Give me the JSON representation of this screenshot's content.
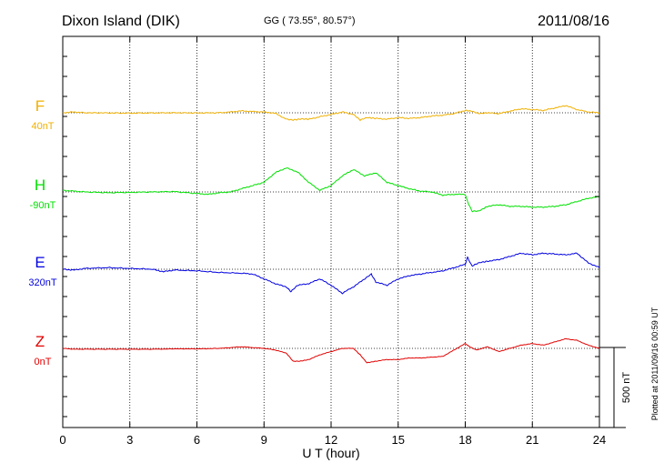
{
  "chart_data": {
    "type": "line",
    "title": "Dixon Island (DIK)",
    "coords": "GG ( 73.55°,  80.57°)",
    "date": "2011/08/16",
    "xlabel": "U T (hour)",
    "xlim": [
      0,
      24
    ],
    "xticks": [
      "0",
      "3",
      "6",
      "9",
      "12",
      "15",
      "18",
      "21",
      "24"
    ],
    "scale_label": "500 nT",
    "plotted_note": "Plotted at 2011/09/16 00:59 UT",
    "grid": true,
    "series": [
      {
        "name": "F",
        "offset_label": "40nT",
        "color": "#f0b000",
        "x": [
          0,
          0.5,
          1,
          2,
          3,
          4,
          5,
          6,
          7,
          7.5,
          8,
          8.5,
          9,
          9.5,
          10,
          10.3,
          10.7,
          11,
          11.5,
          12,
          12.5,
          13,
          13.3,
          13.6,
          14,
          14.5,
          15,
          15.5,
          16,
          16.5,
          17,
          17.5,
          18,
          18.3,
          18.6,
          19,
          19.5,
          20,
          20.5,
          21,
          21.5,
          22,
          22.5,
          23,
          23.5,
          24
        ],
        "values": [
          0,
          5,
          0,
          -1,
          -2,
          -1,
          0,
          -1,
          0,
          5,
          12,
          8,
          5,
          -3,
          -40,
          -45,
          -38,
          -40,
          -25,
          -10,
          5,
          -10,
          -45,
          -30,
          -35,
          -40,
          -30,
          -35,
          -30,
          -20,
          -15,
          -5,
          15,
          10,
          -5,
          0,
          -5,
          10,
          25,
          20,
          15,
          30,
          45,
          20,
          5,
          0
        ]
      },
      {
        "name": "H",
        "offset_label": "-90nT",
        "color": "#00e000",
        "x": [
          0,
          0.5,
          1,
          2,
          3,
          4,
          5,
          6,
          6.5,
          7,
          7.5,
          8,
          8.5,
          9,
          9.5,
          10,
          10.5,
          11,
          11.5,
          12,
          12.5,
          13,
          13.5,
          14,
          14.5,
          15,
          15.5,
          16,
          16.5,
          17,
          17.5,
          18,
          18.1,
          18.3,
          18.6,
          19,
          19.5,
          20,
          20.5,
          21,
          21.5,
          22,
          22.5,
          23,
          23.5,
          24
        ],
        "values": [
          10,
          5,
          0,
          -5,
          -3,
          0,
          2,
          -10,
          -15,
          -5,
          0,
          20,
          40,
          60,
          120,
          150,
          125,
          60,
          10,
          40,
          100,
          140,
          100,
          120,
          60,
          40,
          20,
          5,
          0,
          -20,
          -15,
          -15,
          -60,
          -120,
          -120,
          -90,
          -80,
          -90,
          -90,
          -95,
          -95,
          -90,
          -80,
          -60,
          -40,
          -30
        ]
      },
      {
        "name": "E",
        "offset_label": "320nT",
        "color": "#0000e0",
        "x": [
          0,
          0.5,
          1,
          2,
          3,
          4,
          4.5,
          5,
          6,
          7,
          8,
          8.5,
          9,
          9.5,
          10,
          10.2,
          10.5,
          11,
          11.5,
          12,
          12.5,
          13,
          13.5,
          13.8,
          14,
          14.5,
          15,
          15.5,
          16,
          16.5,
          17,
          17.5,
          18,
          18.1,
          18.3,
          18.6,
          19,
          19.5,
          20,
          20.5,
          21,
          21.5,
          22,
          22.5,
          23,
          23.5,
          24
        ],
        "values": [
          0,
          -5,
          5,
          10,
          5,
          0,
          -15,
          -5,
          -10,
          -20,
          -25,
          -30,
          -60,
          -90,
          -110,
          -140,
          -100,
          -90,
          -60,
          -100,
          -150,
          -110,
          -60,
          -30,
          -80,
          -100,
          -60,
          -40,
          -30,
          -20,
          -10,
          10,
          30,
          75,
          20,
          40,
          50,
          60,
          80,
          100,
          90,
          100,
          95,
          90,
          100,
          40,
          10
        ]
      },
      {
        "name": "Z",
        "offset_label": "0nT",
        "color": "#e00000",
        "x": [
          0,
          0.5,
          1,
          2,
          3,
          4,
          5,
          6,
          7,
          8,
          8.5,
          9,
          9.5,
          10,
          10.3,
          10.6,
          11,
          11.5,
          12,
          12.5,
          13,
          13.3,
          13.6,
          14,
          14.5,
          15,
          15.5,
          16,
          16.5,
          17,
          17.5,
          18,
          18.2,
          18.5,
          19,
          19.5,
          20,
          20.5,
          21,
          21.5,
          22,
          22.5,
          23,
          23.5,
          24
        ],
        "values": [
          0,
          -5,
          -5,
          -5,
          -5,
          -5,
          -3,
          -3,
          0,
          10,
          5,
          0,
          -10,
          -30,
          -80,
          -80,
          -70,
          -40,
          -20,
          0,
          0,
          -40,
          -90,
          -80,
          -70,
          -70,
          -60,
          -60,
          -55,
          -50,
          -10,
          30,
          10,
          -10,
          10,
          -20,
          0,
          20,
          30,
          20,
          40,
          60,
          50,
          20,
          0
        ]
      }
    ]
  }
}
